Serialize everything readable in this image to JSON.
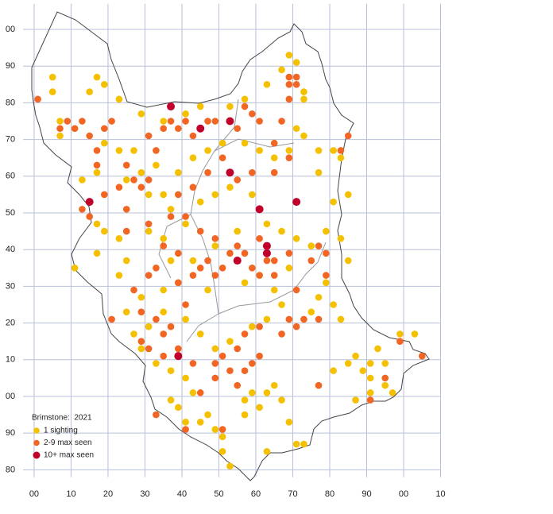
{
  "chart_data": {
    "type": "scatter",
    "title": "Brimstone:  2021",
    "grid": true,
    "legend": "lower left",
    "xlim": [
      -3,
      110
    ],
    "ylim": [
      -22,
      107
    ],
    "xticks": [
      {
        "value": 0,
        "label": "00"
      },
      10,
      20,
      30,
      40,
      50,
      60,
      70,
      80,
      90,
      {
        "value": 100,
        "label": "00"
      },
      {
        "value": 110,
        "label": "10"
      }
    ],
    "yticks": [
      {
        "value": 100,
        "label": "00"
      },
      90,
      80,
      70,
      60,
      50,
      40,
      30,
      20,
      10,
      {
        "value": 0,
        "label": "00"
      },
      {
        "value": -10,
        "label": "90"
      },
      {
        "value": -20,
        "label": "80"
      }
    ],
    "series": [
      {
        "name": "1 sighting",
        "color": "#f5c000",
        "x": [
          5,
          5,
          7,
          7,
          11,
          15,
          17,
          19,
          23,
          29,
          35,
          41,
          45,
          53,
          57,
          63,
          67,
          69,
          71,
          73,
          73,
          71,
          73,
          77,
          81,
          83,
          85,
          81,
          77,
          69,
          65,
          61,
          57,
          51,
          47,
          43,
          39,
          33,
          29,
          27,
          23,
          19,
          17,
          13,
          17,
          19,
          17,
          11,
          23,
          25,
          23,
          31,
          35,
          37,
          41,
          45,
          49,
          53,
          59,
          63,
          67,
          71,
          75,
          79,
          83,
          85,
          79,
          77,
          81,
          83,
          75,
          67,
          63,
          59,
          53,
          49,
          45,
          41,
          35,
          31,
          27,
          25,
          29,
          33,
          37,
          41,
          43,
          37,
          39,
          41,
          45,
          47,
          49,
          51,
          51,
          53,
          57,
          57,
          59,
          61,
          63,
          65,
          67,
          63,
          69,
          71,
          73,
          77,
          81,
          85,
          87,
          89,
          91,
          91,
          93,
          91,
          87,
          95,
          97,
          99,
          103,
          95,
          29,
          35,
          47,
          57,
          61,
          65,
          69,
          55,
          49,
          43,
          39,
          31,
          25,
          35,
          37
        ],
        "values": [
          87,
          83,
          75,
          71,
          73,
          83,
          87,
          85,
          81,
          77,
          75,
          77,
          79,
          79,
          81,
          85,
          89,
          93,
          91,
          83,
          81,
          73,
          71,
          67,
          67,
          65,
          55,
          53,
          61,
          67,
          65,
          67,
          69,
          69,
          67,
          65,
          61,
          63,
          61,
          67,
          67,
          69,
          61,
          59,
          47,
          45,
          39,
          35,
          43,
          37,
          33,
          45,
          43,
          37,
          47,
          53,
          55,
          57,
          55,
          47,
          45,
          43,
          41,
          45,
          43,
          37,
          31,
          27,
          25,
          21,
          23,
          25,
          21,
          19,
          15,
          13,
          17,
          21,
          23,
          19,
          17,
          23,
          13,
          9,
          7,
          5,
          1,
          -1,
          -3,
          -7,
          -7,
          -5,
          -9,
          -11,
          -15,
          -19,
          -5,
          -1,
          1,
          -3,
          1,
          3,
          -1,
          -15,
          -7,
          -13,
          -13,
          3,
          7,
          9,
          11,
          7,
          9,
          5,
          13,
          1,
          -1,
          3,
          1,
          17,
          17,
          9,
          27,
          29,
          29,
          31,
          33,
          29,
          35,
          45,
          41,
          37,
          31,
          55,
          59,
          55,
          51
        ]
      },
      {
        "name": "2-9 max seen",
        "color": "#f26522",
        "x": [
          1,
          7,
          9,
          11,
          13,
          15,
          17,
          19,
          21,
          17,
          19,
          23,
          25,
          25,
          27,
          29,
          31,
          25,
          21,
          13,
          15,
          31,
          33,
          35,
          37,
          39,
          41,
          43,
          47,
          49,
          55,
          57,
          59,
          61,
          67,
          71,
          71,
          69,
          69,
          69,
          85,
          83,
          65,
          69,
          65,
          59,
          55,
          51,
          47,
          43,
          39,
          37,
          41,
          45,
          49,
          53,
          57,
          59,
          61,
          65,
          69,
          75,
          77,
          79,
          79,
          71,
          71,
          69,
          73,
          77,
          67,
          61,
          57,
          55,
          51,
          49,
          53,
          55,
          49,
          45,
          43,
          39,
          35,
          33,
          29,
          29,
          31,
          35,
          27,
          31,
          33,
          39,
          43,
          45,
          47,
          49,
          51,
          55,
          61,
          63,
          65,
          63,
          39,
          35,
          31,
          41,
          37,
          61,
          59,
          57,
          77,
          91,
          95,
          99,
          105,
          33,
          51,
          41
        ],
        "values": [
          81,
          73,
          75,
          73,
          75,
          71,
          67,
          73,
          75,
          63,
          55,
          57,
          51,
          63,
          59,
          57,
          59,
          45,
          21,
          51,
          49,
          71,
          67,
          73,
          75,
          73,
          75,
          71,
          75,
          75,
          73,
          79,
          77,
          75,
          75,
          87,
          85,
          87,
          85,
          81,
          71,
          67,
          69,
          65,
          61,
          61,
          59,
          65,
          61,
          57,
          55,
          49,
          49,
          45,
          43,
          39,
          39,
          35,
          33,
          37,
          39,
          37,
          41,
          39,
          33,
          29,
          19,
          21,
          21,
          21,
          17,
          19,
          17,
          13,
          11,
          9,
          7,
          3,
          5,
          1,
          9,
          13,
          17,
          21,
          23,
          15,
          13,
          11,
          29,
          33,
          35,
          31,
          33,
          35,
          37,
          33,
          35,
          41,
          43,
          37,
          33,
          41,
          39,
          41,
          47,
          25,
          19,
          11,
          9,
          7,
          3,
          -1,
          5,
          15,
          11,
          -5,
          -9,
          -9
        ]
      },
      {
        "name": "10+ max seen",
        "color": "#c0002a",
        "x": [
          37,
          45,
          53,
          53,
          15,
          61,
          71,
          63,
          63,
          55,
          39
        ],
        "values": [
          79,
          73,
          75,
          61,
          53,
          51,
          53,
          41,
          39,
          37,
          11
        ]
      }
    ]
  }
}
